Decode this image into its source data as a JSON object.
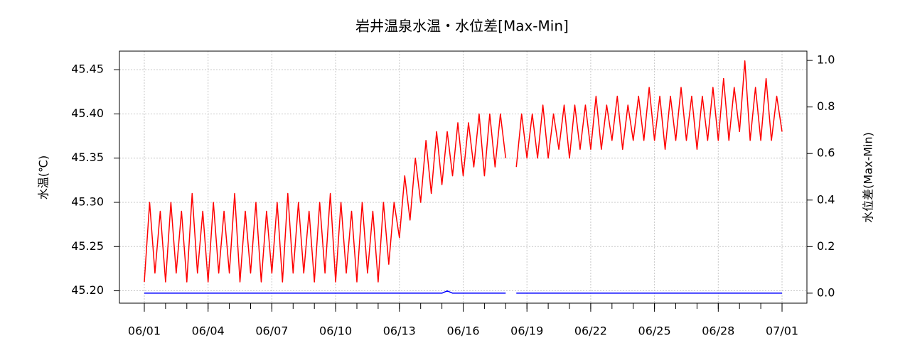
{
  "chart_data": {
    "type": "line",
    "title": "岩井温泉水温・水位差[Max-Min]",
    "y_label": "水温(℃)",
    "y2_label": "水位差(Max-Min)",
    "x": [
      0,
      0.25,
      0.5,
      0.75,
      1,
      1.25,
      1.5,
      1.75,
      2,
      2.25,
      2.5,
      2.75,
      3,
      3.25,
      3.5,
      3.75,
      4,
      4.25,
      4.5,
      4.75,
      5,
      5.25,
      5.5,
      5.75,
      6,
      6.25,
      6.5,
      6.75,
      7,
      7.25,
      7.5,
      7.75,
      8,
      8.25,
      8.5,
      8.75,
      9,
      9.25,
      9.5,
      9.75,
      10,
      10.25,
      10.5,
      10.75,
      11,
      11.25,
      11.5,
      11.75,
      12,
      12.25,
      12.5,
      12.75,
      13,
      13.25,
      13.5,
      13.75,
      14,
      14.25,
      14.5,
      14.75,
      15,
      15.25,
      15.5,
      15.75,
      16,
      16.25,
      16.5,
      16.75,
      17,
      17.25,
      17.5,
      17.75,
      18,
      18.25,
      18.5,
      18.75,
      19,
      19.25,
      19.5,
      19.75,
      20,
      20.25,
      20.5,
      20.75,
      21,
      21.25,
      21.5,
      21.75,
      22,
      22.25,
      22.5,
      22.75,
      23,
      23.25,
      23.5,
      23.75,
      24,
      24.25,
      24.5,
      24.75,
      25,
      25.25,
      25.5,
      25.75,
      26,
      26.25,
      26.5,
      26.75,
      27,
      27.25,
      27.5,
      27.75,
      28,
      28.25,
      28.5,
      28.75,
      29,
      29.25,
      29.5,
      29.75,
      30
    ],
    "series": [
      {
        "name": "水温",
        "color": "#ff0000",
        "values": [
          45.21,
          45.3,
          45.22,
          45.29,
          45.21,
          45.3,
          45.22,
          45.29,
          45.21,
          45.31,
          45.22,
          45.29,
          45.21,
          45.3,
          45.22,
          45.29,
          45.22,
          45.31,
          45.21,
          45.29,
          45.22,
          45.3,
          45.21,
          45.29,
          45.22,
          45.3,
          45.21,
          45.31,
          45.22,
          45.3,
          45.22,
          45.29,
          45.21,
          45.3,
          45.22,
          45.31,
          45.21,
          45.3,
          45.22,
          45.29,
          45.21,
          45.3,
          45.22,
          45.29,
          45.21,
          45.3,
          45.23,
          45.3,
          45.26,
          45.33,
          45.28,
          45.35,
          45.3,
          45.37,
          45.31,
          45.38,
          45.32,
          45.38,
          45.33,
          45.39,
          45.33,
          45.39,
          45.34,
          45.4,
          45.33,
          45.4,
          45.34,
          45.4,
          45.35,
          null,
          45.34,
          45.4,
          45.35,
          45.4,
          45.35,
          45.41,
          45.35,
          45.4,
          45.36,
          45.41,
          45.35,
          45.41,
          45.36,
          45.41,
          45.36,
          45.42,
          45.36,
          45.41,
          45.37,
          45.42,
          45.36,
          45.41,
          45.37,
          45.42,
          45.37,
          45.43,
          45.37,
          45.42,
          45.36,
          45.42,
          45.37,
          45.43,
          45.37,
          45.42,
          45.36,
          45.42,
          45.37,
          45.43,
          45.37,
          45.44,
          45.37,
          45.43,
          45.38,
          45.46,
          45.37,
          45.43,
          45.37,
          45.44,
          45.37,
          45.42,
          45.38
        ]
      },
      {
        "name": "水位差",
        "color": "#0000ff",
        "axis": "y2",
        "values": [
          0,
          0,
          0,
          0,
          0,
          0,
          0,
          0,
          0,
          0,
          0,
          0,
          0,
          0,
          0,
          0,
          0,
          0,
          0,
          0,
          0,
          0,
          0,
          0,
          0,
          0,
          0,
          0,
          0,
          0,
          0,
          0,
          0,
          0,
          0,
          0,
          0,
          0,
          0,
          0,
          0,
          0,
          0,
          0,
          0,
          0,
          0,
          0,
          0,
          0,
          0,
          0,
          0,
          0,
          0,
          0,
          0,
          0.01,
          0,
          0,
          0,
          0,
          0,
          0,
          0,
          0,
          0,
          0,
          0,
          null,
          0,
          0,
          0,
          0,
          0,
          0,
          0,
          0,
          0,
          0,
          0,
          0,
          0,
          0,
          0,
          0,
          0,
          0,
          0,
          0,
          0,
          0,
          0,
          0,
          0,
          0,
          0,
          0,
          0,
          0,
          0,
          0,
          0,
          0,
          0,
          0,
          0,
          0,
          0,
          0,
          0,
          0,
          0,
          0,
          0,
          0,
          0,
          0,
          0,
          0,
          0
        ]
      }
    ],
    "xlim": [
      -1.17,
      31.17
    ],
    "xticks": [
      {
        "value": 0,
        "label": "06/01"
      },
      {
        "value": 3,
        "label": "06/04"
      },
      {
        "value": 6,
        "label": "06/07"
      },
      {
        "value": 9,
        "label": "06/10"
      },
      {
        "value": 12,
        "label": "06/13"
      },
      {
        "value": 15,
        "label": "06/16"
      },
      {
        "value": 18,
        "label": "06/19"
      },
      {
        "value": 21,
        "label": "06/22"
      },
      {
        "value": 24,
        "label": "06/25"
      },
      {
        "value": 27,
        "label": "06/28"
      },
      {
        "value": 30,
        "label": "07/01"
      }
    ],
    "xminorticks": [
      0,
      1,
      2,
      3,
      4,
      5,
      6,
      7,
      8,
      9,
      10,
      11,
      12,
      13,
      14,
      15,
      16,
      17,
      18,
      19,
      20,
      21,
      22,
      23,
      24,
      25,
      26,
      27,
      28,
      29,
      30
    ],
    "ylim": [
      45.186,
      45.471
    ],
    "yticks": [
      {
        "value": 45.2,
        "label": "45.20"
      },
      {
        "value": 45.25,
        "label": "45.25"
      },
      {
        "value": 45.3,
        "label": "45.30"
      },
      {
        "value": 45.35,
        "label": "45.35"
      },
      {
        "value": 45.4,
        "label": "45.40"
      },
      {
        "value": 45.45,
        "label": "45.45"
      }
    ],
    "y2lim": [
      -0.043,
      1.04
    ],
    "y2ticks": [
      {
        "value": 0,
        "label": "0.0"
      },
      {
        "value": 0.2,
        "label": "0.2"
      },
      {
        "value": 0.4,
        "label": "0.4"
      },
      {
        "value": 0.6,
        "label": "0.6"
      },
      {
        "value": 0.8,
        "label": "0.8"
      },
      {
        "value": 1,
        "label": "1.0"
      }
    ],
    "grid": true
  }
}
